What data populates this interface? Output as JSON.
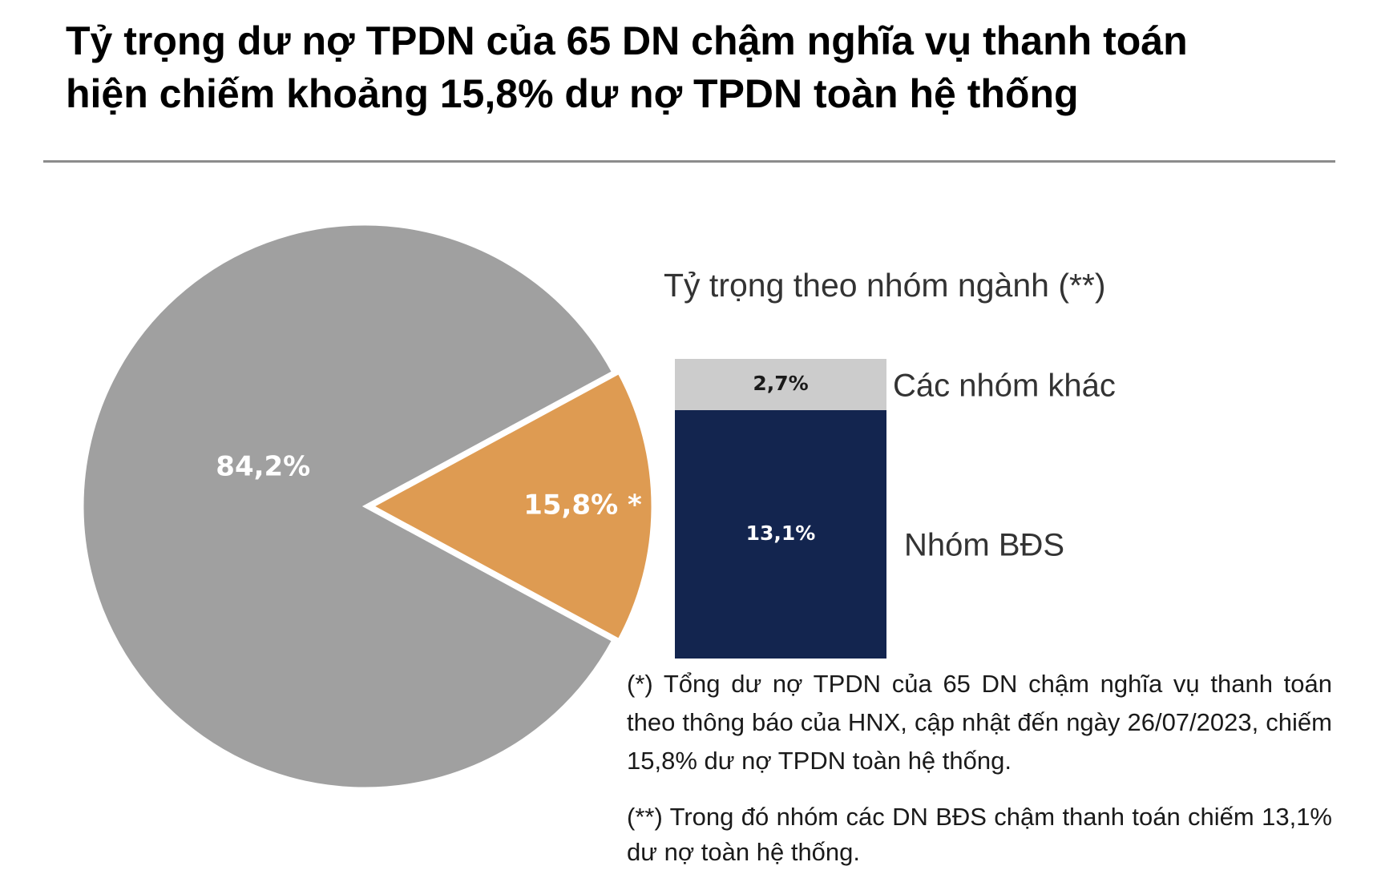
{
  "title_line1": "Tỷ trọng dư nợ TPDN của 65 DN chậm nghĩa vụ thanh toán",
  "title_line2": "hiện chiếm khoảng 15,8% dư nợ TPDN toàn hệ thống",
  "colors": {
    "pie_rest": "#a0a0a0",
    "pie_highlight": "#de9b52",
    "bar_other": "#cccccc",
    "bar_bds": "#13254f",
    "slice_border": "#ffffff"
  },
  "chart_data": [
    {
      "type": "pie",
      "slices": [
        {
          "label": "84,2%",
          "value": 84.2
        },
        {
          "label": "15,8% *",
          "value": 15.8
        }
      ]
    },
    {
      "type": "bar",
      "stacked": true,
      "title": "Tỷ trọng theo nhóm ngành (**)",
      "segments": [
        {
          "name": "Nhóm BĐS",
          "value": 13.1,
          "label": "13,1%"
        },
        {
          "name": "Các nhóm khác",
          "value": 2.7,
          "label": "2,7%"
        }
      ]
    }
  ],
  "notes": {
    "note1": "(*) Tổng dư nợ TPDN của 65 DN chậm nghĩa vụ thanh toán theo thông báo của HNX, cập nhật đến ngày 26/07/2023, chiếm 15,8% dư nợ TPDN toàn hệ thống.",
    "note2": "(**) Trong đó nhóm các DN BĐS chậm thanh toán chiếm 13,1% dư nợ toàn hệ thống."
  }
}
